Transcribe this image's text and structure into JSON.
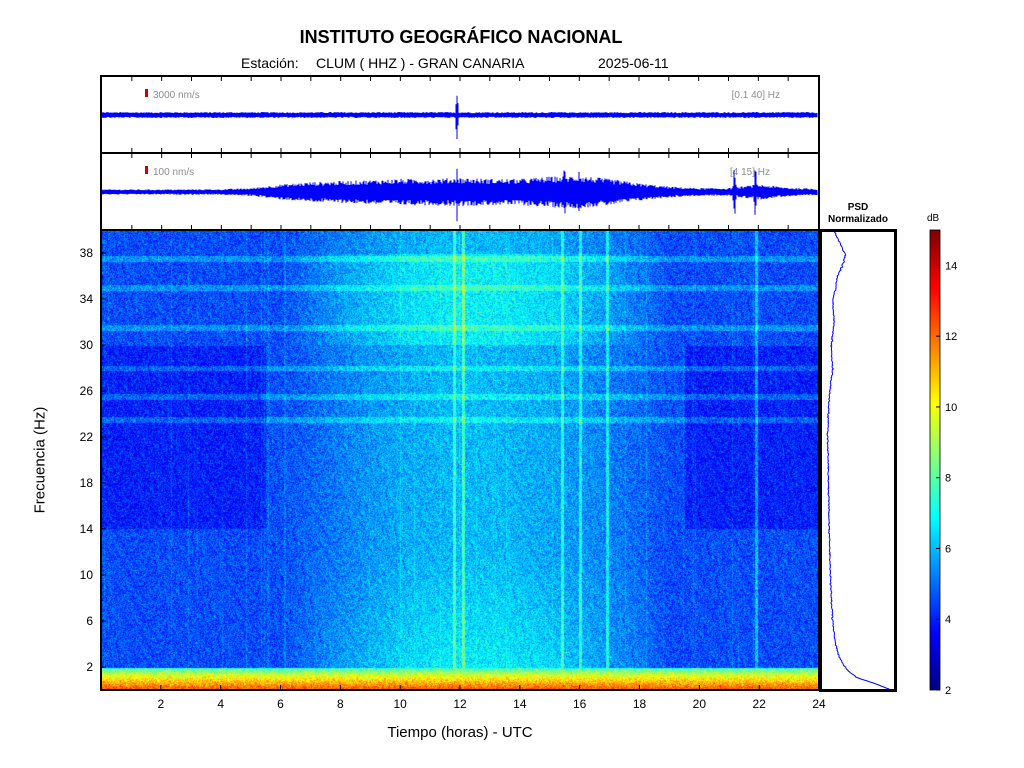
{
  "header": {
    "title": "INSTITUTO GEOGRÁFICO NACIONAL",
    "station_label": "Estación:",
    "station": "CLUM ( HHZ ) - GRAN CANARIA",
    "date": "2025-06-11"
  },
  "chart_data": [
    {
      "type": "line",
      "name": "waveform_broadband",
      "scale_label": "3000 nm/s",
      "band_label": "[0.1 40] Hz",
      "x_range": [
        0,
        24
      ],
      "notes": "continuous low-amplitude trace; single transient near 11.9 h",
      "transients_hours": [
        11.9
      ],
      "color": "#0000ff",
      "scale_mark_color": "#cc0000"
    },
    {
      "type": "line",
      "name": "waveform_filtered",
      "scale_label": "100 nm/s",
      "band_label": "[4 15] Hz",
      "x_range": [
        0,
        24
      ],
      "envelope_hours": [
        0,
        2,
        4,
        5,
        6,
        7,
        8,
        9,
        10,
        11,
        12,
        13,
        14,
        15,
        16,
        17,
        18,
        19,
        20,
        21,
        22,
        23,
        24
      ],
      "envelope_rel": [
        0.12,
        0.12,
        0.13,
        0.18,
        0.35,
        0.45,
        0.5,
        0.55,
        0.6,
        0.6,
        0.65,
        0.6,
        0.6,
        0.7,
        0.75,
        0.6,
        0.4,
        0.25,
        0.18,
        0.18,
        0.35,
        0.2,
        0.15
      ],
      "transients_hours": [
        11.9,
        15.5,
        16.0,
        21.2,
        21.9
      ],
      "color": "#0000ff"
    },
    {
      "type": "heatmap",
      "name": "spectrogram",
      "xlabel": "Tiempo (horas) - UTC",
      "ylabel": "Frecuencia  (Hz)",
      "x_range": [
        0,
        24
      ],
      "y_range": [
        0,
        40
      ],
      "x_ticks": [
        2,
        4,
        6,
        8,
        10,
        12,
        14,
        16,
        18,
        20,
        22,
        24
      ],
      "y_ticks": [
        2,
        6,
        10,
        14,
        18,
        22,
        26,
        30,
        34,
        38
      ],
      "colormap": "jet",
      "color_range_db": [
        2,
        15
      ],
      "low_freq_band_hz": [
        0,
        2
      ],
      "low_freq_band_db": 11,
      "day_activity_hours": [
        6,
        19
      ],
      "quiet_hours": [
        [
          0,
          5.5
        ],
        [
          19.5,
          24
        ]
      ],
      "spectral_lines_hz": [
        37.5,
        35,
        31.5,
        28,
        25.5,
        23.5
      ],
      "vertical_events_hours": [
        11.8,
        12.1,
        15.4,
        16.0,
        16.9,
        21.9
      ]
    },
    {
      "type": "line",
      "name": "psd_normalized",
      "title": "PSD\nNormalizado",
      "y_range": [
        0,
        40
      ],
      "freq_hz": [
        0,
        0.5,
        1,
        1.5,
        2,
        3,
        4,
        5,
        6,
        7,
        8,
        10,
        12,
        14,
        16,
        18,
        20,
        22,
        24,
        26,
        28,
        30,
        32,
        34,
        35,
        36,
        37,
        38,
        39,
        40
      ],
      "rel_amplitude": [
        0.9,
        0.7,
        0.45,
        0.35,
        0.28,
        0.2,
        0.16,
        0.14,
        0.12,
        0.11,
        0.1,
        0.09,
        0.08,
        0.07,
        0.07,
        0.06,
        0.06,
        0.05,
        0.06,
        0.08,
        0.12,
        0.1,
        0.14,
        0.12,
        0.16,
        0.18,
        0.25,
        0.3,
        0.22,
        0.15
      ],
      "color": "#0000ff"
    },
    {
      "type": "heatmap",
      "name": "colorbar",
      "unit_label": "dB",
      "range": [
        2,
        15
      ],
      "ticks": [
        2,
        4,
        6,
        8,
        10,
        12,
        14
      ],
      "colormap": "jet"
    }
  ]
}
